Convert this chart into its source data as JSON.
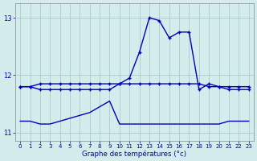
{
  "background_color": "#d4ecec",
  "grid_color": "#a8cccc",
  "line_color": "#0000bb",
  "xlabel": "Graphe des températures (°c)",
  "hours": [
    0,
    1,
    2,
    3,
    4,
    5,
    6,
    7,
    8,
    9,
    10,
    11,
    12,
    13,
    14,
    15,
    16,
    17,
    18,
    19,
    20,
    21,
    22,
    23
  ],
  "y_main": [
    11.8,
    11.8,
    11.75,
    11.75,
    11.75,
    11.75,
    11.75,
    11.75,
    11.75,
    11.75,
    11.85,
    11.95,
    12.4,
    13.0,
    12.95,
    12.65,
    12.75,
    12.75,
    11.75,
    11.85,
    11.8,
    11.75,
    11.75,
    11.75
  ],
  "y_upper_flat": [
    11.8,
    11.8,
    11.85,
    11.85,
    11.85,
    11.85,
    11.85,
    11.85,
    11.85,
    11.85,
    11.85,
    11.85,
    11.85,
    11.85,
    11.85,
    11.85,
    11.85,
    11.85,
    11.85,
    11.8,
    11.8,
    11.8,
    11.8,
    11.8
  ],
  "y_lower_flat": [
    11.2,
    11.2,
    11.15,
    11.15,
    11.2,
    11.25,
    11.3,
    11.35,
    11.45,
    11.55,
    11.15,
    11.15,
    11.15,
    11.15,
    11.15,
    11.15,
    11.15,
    11.15,
    11.15,
    11.15,
    11.15,
    11.2,
    11.2,
    11.2
  ],
  "ylim": [
    10.85,
    13.25
  ],
  "yticks": [
    11,
    12,
    13
  ],
  "xlim": [
    -0.5,
    23.5
  ],
  "xticks": [
    0,
    1,
    2,
    3,
    4,
    5,
    6,
    7,
    8,
    9,
    10,
    11,
    12,
    13,
    14,
    15,
    16,
    17,
    18,
    19,
    20,
    21,
    22,
    23
  ]
}
